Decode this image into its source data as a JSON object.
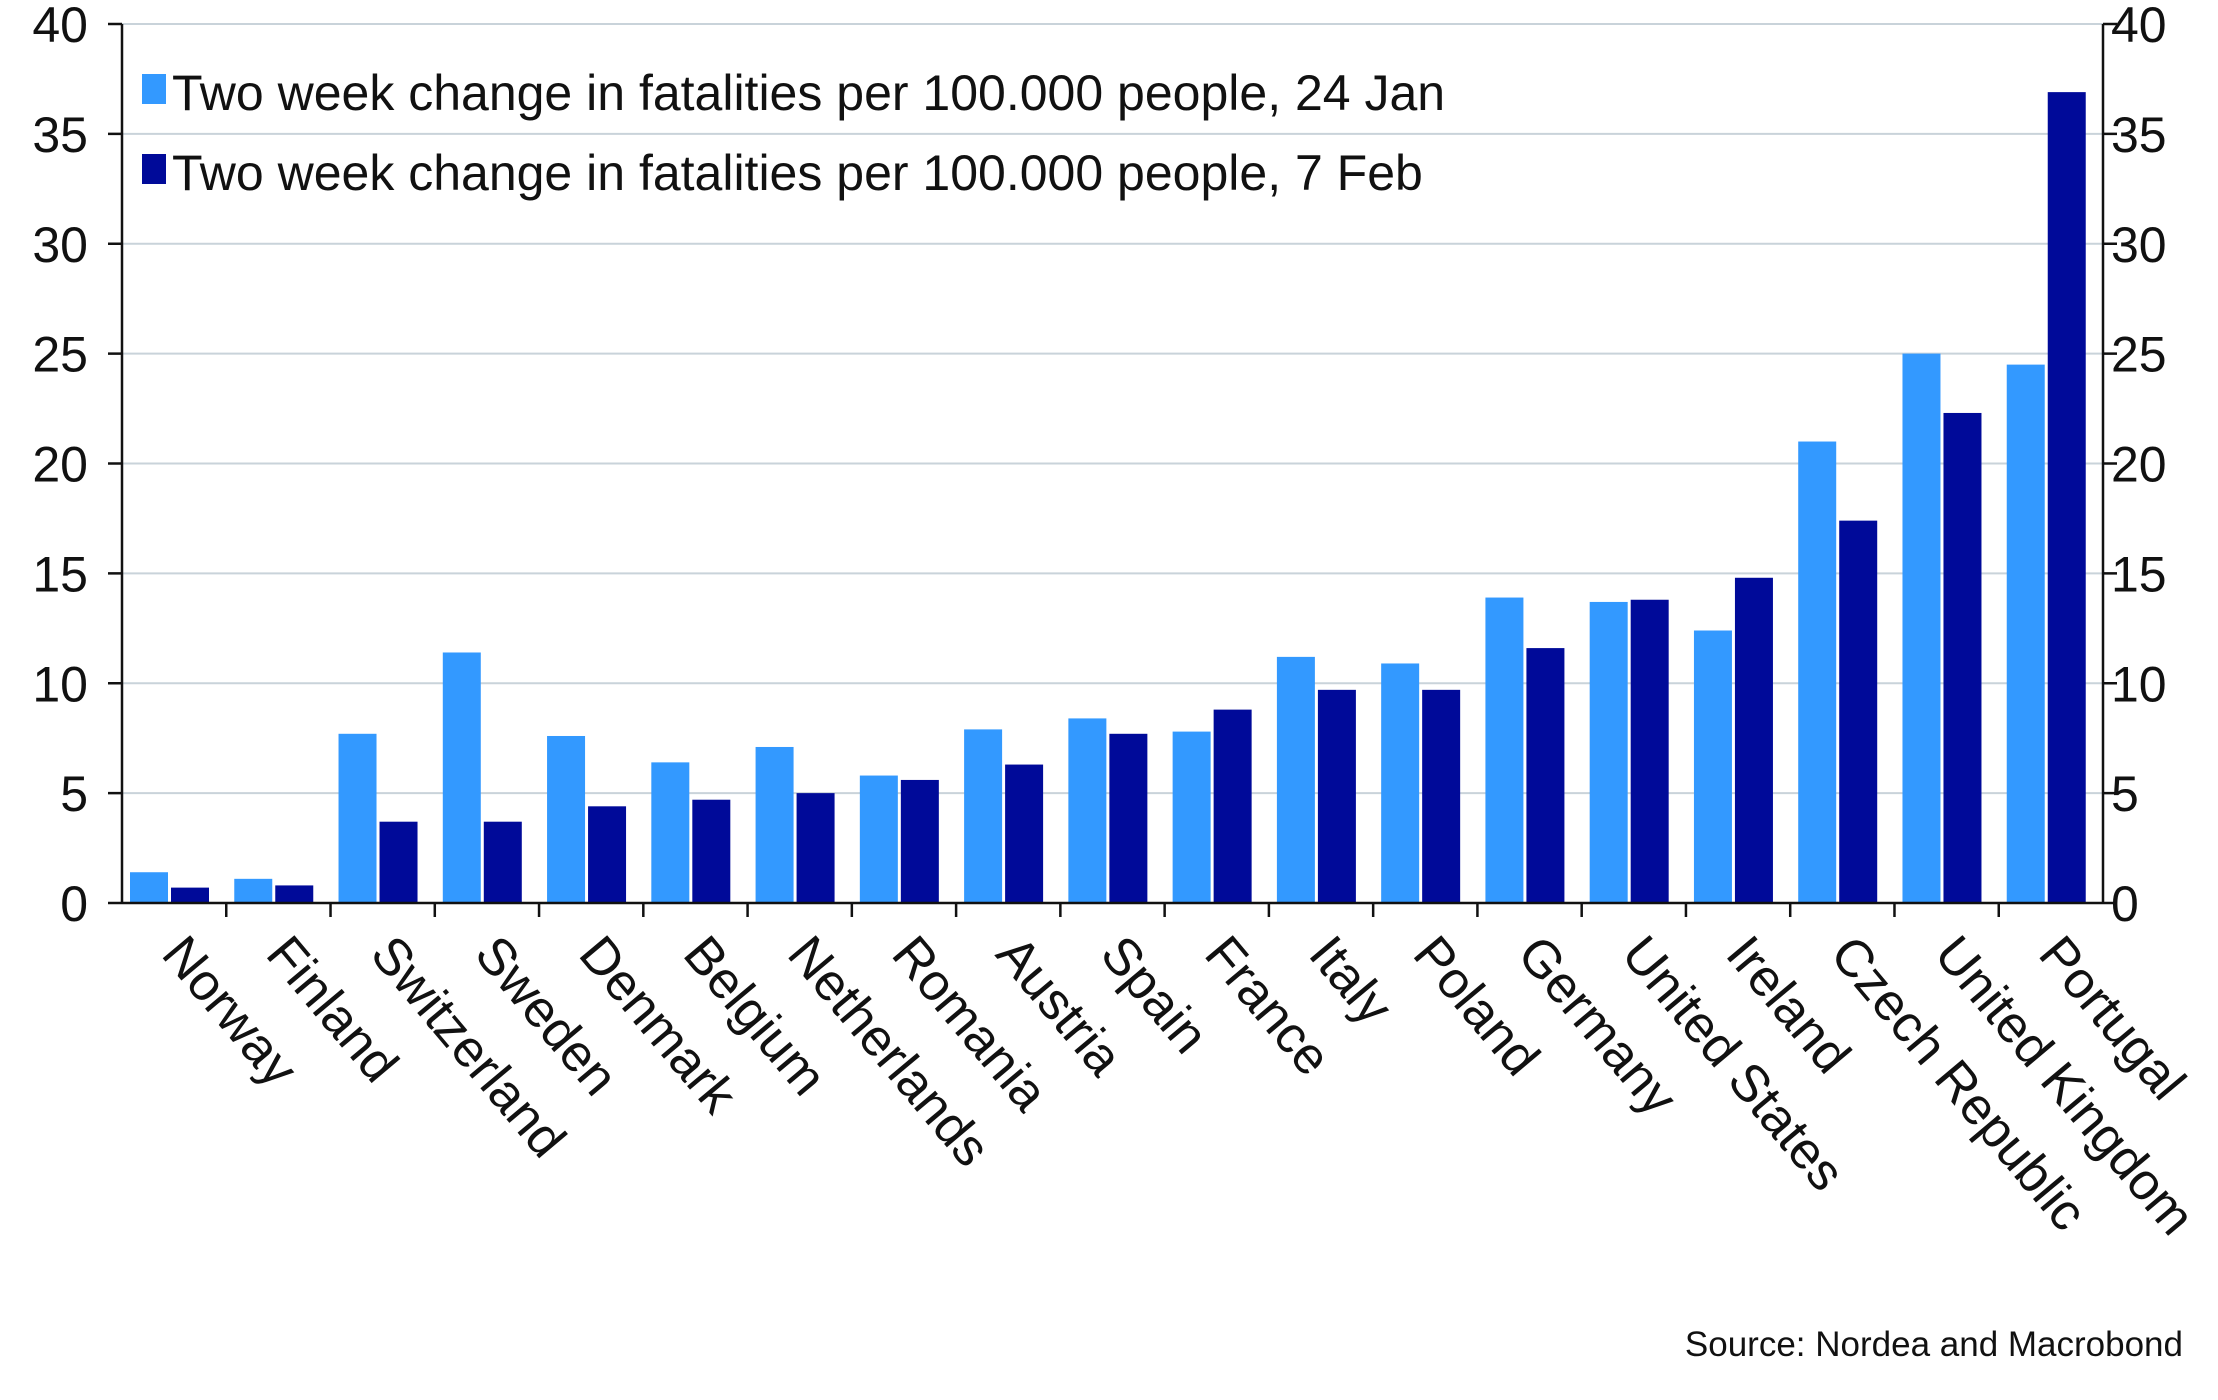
{
  "chart_data": {
    "type": "bar",
    "categories": [
      "Norway",
      "Finland",
      "Switzerland",
      "Sweden",
      "Denmark",
      "Belgium",
      "Netherlands",
      "Romania",
      "Austria",
      "Spain",
      "France",
      "Italy",
      "Poland",
      "Germany",
      "United States",
      "Ireland",
      "Czech Republic",
      "United Kingdom",
      "Portugal"
    ],
    "series": [
      {
        "name": "Two week change in fatalities per 100.000 people, 24 Jan",
        "color": "#3399ff",
        "values": [
          1.4,
          1.1,
          7.7,
          11.4,
          7.6,
          6.4,
          7.1,
          5.8,
          7.9,
          8.4,
          7.8,
          11.2,
          10.9,
          13.9,
          13.7,
          12.4,
          21.0,
          25.0,
          24.5
        ]
      },
      {
        "name": "Two week change in fatalities per 100.000 people, 7 Feb",
        "color": "#000a99",
        "values": [
          0.7,
          0.8,
          3.7,
          3.7,
          4.4,
          4.7,
          5.0,
          5.6,
          6.3,
          7.7,
          8.8,
          9.7,
          9.7,
          11.6,
          13.8,
          14.8,
          17.4,
          22.3,
          36.9
        ]
      }
    ],
    "ylim": [
      0,
      40
    ],
    "yticks": [
      0,
      5,
      10,
      15,
      20,
      25,
      30,
      35,
      40
    ],
    "grid": true,
    "legend_position": "top-left",
    "source": "Source: Nordea and Macrobond"
  }
}
